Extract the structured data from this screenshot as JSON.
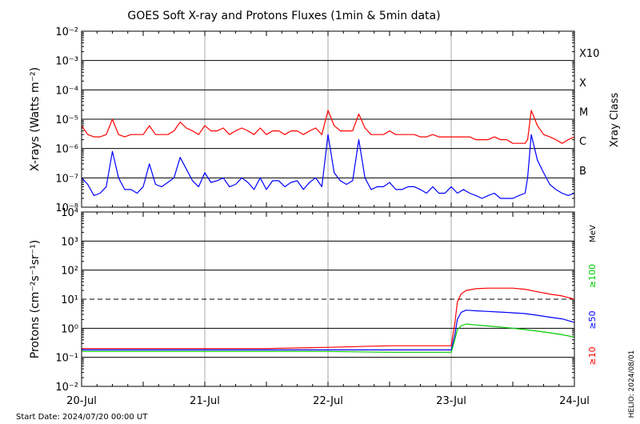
{
  "title": "GOES Soft X-ray and Protons Fluxes   (1min & 5min data)",
  "footer": {
    "start_date": "Start Date: 2024/07/20 00:00 UT",
    "credit": "HELIO: 2024/08/01"
  },
  "colors": {
    "xray_long": "#ff0000",
    "xray_short": "#0000ff",
    "p10": "#ff0000",
    "p50": "#0000ff",
    "p100": "#00cc00",
    "gridlines": "#000000",
    "day_lines": "#aaaaaa"
  },
  "chart_data": [
    {
      "type": "line",
      "panel": "xray",
      "ylabel": "X-rays (Watts m⁻²)",
      "yscale": "log",
      "ylim": [
        1e-08,
        0.01
      ],
      "ytick_labels": [
        "10⁻⁸",
        "10⁻⁷",
        "10⁻⁶",
        "10⁻⁵",
        "10⁻⁴",
        "10⁻³",
        "10⁻²"
      ],
      "xlim_days": [
        0,
        4
      ],
      "grid": true,
      "right_labels": [
        "B",
        "C",
        "M",
        "X",
        "X10"
      ],
      "right_axis_title": "Xray Class",
      "series": [
        {
          "color": "#ff0000",
          "x_days": [
            0,
            0.05,
            0.1,
            0.15,
            0.2,
            0.25,
            0.3,
            0.35,
            0.4,
            0.45,
            0.5,
            0.55,
            0.6,
            0.65,
            0.7,
            0.75,
            0.8,
            0.85,
            0.9,
            0.95,
            1.0,
            1.05,
            1.1,
            1.15,
            1.2,
            1.25,
            1.3,
            1.35,
            1.4,
            1.45,
            1.5,
            1.55,
            1.6,
            1.65,
            1.7,
            1.75,
            1.8,
            1.85,
            1.9,
            1.95,
            2.0,
            2.05,
            2.1,
            2.15,
            2.2,
            2.25,
            2.3,
            2.35,
            2.4,
            2.45,
            2.5,
            2.55,
            2.6,
            2.65,
            2.7,
            2.75,
            2.8,
            2.85,
            2.9,
            2.95,
            3.0,
            3.05,
            3.1,
            3.15,
            3.2,
            3.25,
            3.3,
            3.35,
            3.4,
            3.45,
            3.5,
            3.55,
            3.6,
            3.62,
            3.65,
            3.7,
            3.75,
            3.8,
            3.85,
            3.9,
            3.95,
            4.0
          ],
          "y": [
            6e-06,
            3e-06,
            2.5e-06,
            2.5e-06,
            3e-06,
            1e-05,
            3e-06,
            2.5e-06,
            3e-06,
            3e-06,
            3e-06,
            6e-06,
            3e-06,
            3e-06,
            3e-06,
            4e-06,
            8e-06,
            5e-06,
            4e-06,
            3e-06,
            6e-06,
            4e-06,
            4e-06,
            5e-06,
            3e-06,
            4e-06,
            5e-06,
            4e-06,
            3e-06,
            5e-06,
            3e-06,
            4e-06,
            4e-06,
            3e-06,
            4e-06,
            4e-06,
            3e-06,
            4e-06,
            5e-06,
            3e-06,
            2e-05,
            6e-06,
            4e-06,
            4e-06,
            4e-06,
            1.5e-05,
            5e-06,
            3e-06,
            3e-06,
            3e-06,
            4e-06,
            3e-06,
            3e-06,
            3e-06,
            3e-06,
            2.5e-06,
            2.5e-06,
            3e-06,
            2.5e-06,
            2.5e-06,
            2.5e-06,
            2.5e-06,
            2.5e-06,
            2.5e-06,
            2e-06,
            2e-06,
            2e-06,
            2.5e-06,
            2e-06,
            2e-06,
            1.5e-06,
            1.5e-06,
            1.5e-06,
            2e-06,
            2e-05,
            6e-06,
            3e-06,
            2.5e-06,
            2e-06,
            1.5e-06,
            2e-06,
            2.5e-06
          ]
        },
        {
          "color": "#0000ff",
          "x_days": [
            0,
            0.05,
            0.1,
            0.15,
            0.2,
            0.25,
            0.3,
            0.35,
            0.4,
            0.45,
            0.5,
            0.55,
            0.6,
            0.65,
            0.7,
            0.75,
            0.8,
            0.85,
            0.9,
            0.95,
            1.0,
            1.05,
            1.1,
            1.15,
            1.2,
            1.25,
            1.3,
            1.35,
            1.4,
            1.45,
            1.5,
            1.55,
            1.6,
            1.65,
            1.7,
            1.75,
            1.8,
            1.85,
            1.9,
            1.95,
            2.0,
            2.05,
            2.1,
            2.15,
            2.2,
            2.25,
            2.3,
            2.35,
            2.4,
            2.45,
            2.5,
            2.55,
            2.6,
            2.65,
            2.7,
            2.75,
            2.8,
            2.85,
            2.9,
            2.95,
            3.0,
            3.05,
            3.1,
            3.15,
            3.2,
            3.25,
            3.3,
            3.35,
            3.4,
            3.45,
            3.5,
            3.55,
            3.6,
            3.62,
            3.65,
            3.7,
            3.75,
            3.8,
            3.85,
            3.9,
            3.95,
            4.0
          ],
          "y": [
            1e-07,
            6e-08,
            2.5e-08,
            3e-08,
            5e-08,
            8e-07,
            1e-07,
            4e-08,
            4e-08,
            3e-08,
            5e-08,
            3e-07,
            6e-08,
            5e-08,
            7e-08,
            1e-07,
            5e-07,
            2e-07,
            8e-08,
            5e-08,
            1.5e-07,
            7e-08,
            8e-08,
            1e-07,
            5e-08,
            6e-08,
            1e-07,
            7e-08,
            4e-08,
            1e-07,
            4e-08,
            8e-08,
            8e-08,
            5e-08,
            7e-08,
            8e-08,
            4e-08,
            7e-08,
            1e-07,
            5e-08,
            3e-06,
            1.5e-07,
            8e-08,
            6e-08,
            8e-08,
            2e-06,
            1e-07,
            4e-08,
            5e-08,
            5e-08,
            7e-08,
            4e-08,
            4e-08,
            5e-08,
            5e-08,
            4e-08,
            3e-08,
            5e-08,
            3e-08,
            3e-08,
            5e-08,
            3e-08,
            4e-08,
            3e-08,
            2.5e-08,
            2e-08,
            2.5e-08,
            3e-08,
            2e-08,
            2e-08,
            2e-08,
            2.5e-08,
            3e-08,
            1e-07,
            3e-06,
            4e-07,
            1.5e-07,
            6e-08,
            4e-08,
            3e-08,
            2.5e-08,
            3e-08
          ]
        }
      ]
    },
    {
      "type": "line",
      "panel": "protons",
      "ylabel": "Protons (cm⁻²s⁻¹sr⁻¹)",
      "yscale": "log",
      "ylim": [
        0.01,
        10000
      ],
      "ytick_labels": [
        "10⁻²",
        "10⁻¹",
        "10⁰",
        "10¹",
        "10²",
        "10³",
        "10⁴"
      ],
      "xlabel_ticks": [
        "20-Jul",
        "21-Jul",
        "22-Jul",
        "23-Jul",
        "24-Jul"
      ],
      "xlim_days": [
        0,
        4
      ],
      "grid": true,
      "threshold": 10,
      "right_unit": "MeV",
      "series": [
        {
          "name": "≥10",
          "color": "#ff0000",
          "x_days": [
            0,
            0.5,
            1.0,
            1.5,
            2.0,
            2.5,
            2.9,
            3.0,
            3.03,
            3.05,
            3.08,
            3.12,
            3.2,
            3.3,
            3.4,
            3.5,
            3.6,
            3.7,
            3.8,
            3.9,
            4.0
          ],
          "y": [
            0.2,
            0.2,
            0.2,
            0.2,
            0.22,
            0.25,
            0.25,
            0.25,
            1.5,
            8,
            15,
            20,
            23,
            24,
            24,
            24,
            22,
            18,
            15,
            13,
            10
          ]
        },
        {
          "name": "≥50",
          "color": "#0000ff",
          "x_days": [
            0,
            0.5,
            1.0,
            1.5,
            2.0,
            2.5,
            2.9,
            3.0,
            3.03,
            3.05,
            3.08,
            3.12,
            3.2,
            3.3,
            3.4,
            3.5,
            3.6,
            3.7,
            3.8,
            3.9,
            4.0
          ],
          "y": [
            0.18,
            0.18,
            0.18,
            0.18,
            0.18,
            0.18,
            0.18,
            0.18,
            0.6,
            2.0,
            3.5,
            4.2,
            4.0,
            3.8,
            3.6,
            3.4,
            3.2,
            2.8,
            2.4,
            2.1,
            1.6
          ]
        },
        {
          "name": "≥100",
          "color": "#00cc00",
          "x_days": [
            0,
            0.5,
            1.0,
            1.5,
            2.0,
            2.5,
            2.9,
            3.0,
            3.03,
            3.05,
            3.08,
            3.12,
            3.2,
            3.3,
            3.4,
            3.5,
            3.6,
            3.7,
            3.8,
            3.9,
            4.0
          ],
          "y": [
            0.16,
            0.16,
            0.16,
            0.16,
            0.16,
            0.15,
            0.15,
            0.15,
            0.4,
            0.9,
            1.2,
            1.4,
            1.3,
            1.2,
            1.1,
            1.0,
            0.9,
            0.8,
            0.7,
            0.6,
            0.5
          ]
        }
      ]
    }
  ]
}
